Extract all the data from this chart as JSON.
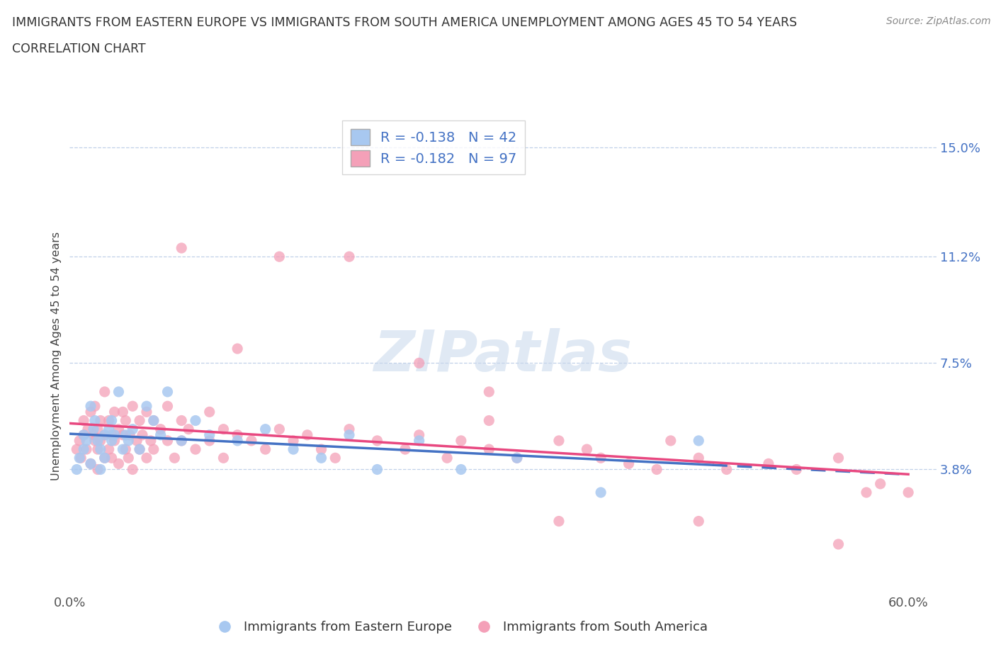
{
  "title_line1": "IMMIGRANTS FROM EASTERN EUROPE VS IMMIGRANTS FROM SOUTH AMERICA UNEMPLOYMENT AMONG AGES 45 TO 54 YEARS",
  "title_line2": "CORRELATION CHART",
  "source": "Source: ZipAtlas.com",
  "ylabel": "Unemployment Among Ages 45 to 54 years",
  "xlim": [
    0.0,
    0.62
  ],
  "ylim": [
    -0.005,
    0.16
  ],
  "yticks": [
    0.038,
    0.075,
    0.112,
    0.15
  ],
  "ytick_labels": [
    "3.8%",
    "7.5%",
    "11.2%",
    "15.0%"
  ],
  "xticks": [
    0.0,
    0.6
  ],
  "xtick_labels": [
    "0.0%",
    "60.0%"
  ],
  "color_blue": "#a8c8f0",
  "color_pink": "#f4a0b8",
  "line_blue": "#4472c4",
  "line_pink": "#e84880",
  "R_blue": -0.138,
  "N_blue": 42,
  "R_pink": -0.182,
  "N_pink": 97,
  "watermark": "ZIPatlas",
  "legend_label_blue": "Immigrants from Eastern Europe",
  "legend_label_pink": "Immigrants from South America",
  "blue_x": [
    0.005,
    0.007,
    0.01,
    0.01,
    0.012,
    0.015,
    0.015,
    0.017,
    0.018,
    0.02,
    0.022,
    0.022,
    0.025,
    0.025,
    0.028,
    0.03,
    0.03,
    0.032,
    0.035,
    0.038,
    0.04,
    0.042,
    0.045,
    0.05,
    0.055,
    0.06,
    0.065,
    0.07,
    0.08,
    0.09,
    0.1,
    0.12,
    0.14,
    0.16,
    0.18,
    0.2,
    0.22,
    0.25,
    0.28,
    0.32,
    0.38,
    0.45
  ],
  "blue_y": [
    0.038,
    0.042,
    0.05,
    0.045,
    0.048,
    0.06,
    0.04,
    0.052,
    0.055,
    0.048,
    0.045,
    0.038,
    0.05,
    0.042,
    0.052,
    0.048,
    0.055,
    0.05,
    0.065,
    0.045,
    0.05,
    0.048,
    0.052,
    0.045,
    0.06,
    0.055,
    0.05,
    0.065,
    0.048,
    0.055,
    0.05,
    0.048,
    0.052,
    0.045,
    0.042,
    0.05,
    0.038,
    0.048,
    0.038,
    0.042,
    0.03,
    0.048
  ],
  "pink_x": [
    0.005,
    0.007,
    0.008,
    0.01,
    0.01,
    0.012,
    0.013,
    0.015,
    0.015,
    0.017,
    0.018,
    0.018,
    0.02,
    0.02,
    0.02,
    0.022,
    0.022,
    0.025,
    0.025,
    0.025,
    0.028,
    0.028,
    0.03,
    0.03,
    0.032,
    0.032,
    0.035,
    0.035,
    0.038,
    0.038,
    0.04,
    0.04,
    0.042,
    0.043,
    0.045,
    0.045,
    0.048,
    0.05,
    0.05,
    0.052,
    0.055,
    0.055,
    0.058,
    0.06,
    0.06,
    0.065,
    0.07,
    0.07,
    0.075,
    0.08,
    0.08,
    0.085,
    0.09,
    0.1,
    0.1,
    0.11,
    0.11,
    0.12,
    0.13,
    0.14,
    0.15,
    0.16,
    0.17,
    0.18,
    0.19,
    0.2,
    0.22,
    0.24,
    0.25,
    0.27,
    0.28,
    0.3,
    0.3,
    0.32,
    0.35,
    0.37,
    0.38,
    0.4,
    0.42,
    0.43,
    0.45,
    0.47,
    0.5,
    0.52,
    0.55,
    0.57,
    0.58,
    0.6,
    0.15,
    0.25,
    0.08,
    0.12,
    0.2,
    0.3,
    0.35,
    0.45,
    0.55
  ],
  "pink_y": [
    0.045,
    0.048,
    0.042,
    0.05,
    0.055,
    0.045,
    0.052,
    0.04,
    0.058,
    0.05,
    0.048,
    0.06,
    0.045,
    0.052,
    0.038,
    0.048,
    0.055,
    0.042,
    0.05,
    0.065,
    0.045,
    0.055,
    0.05,
    0.042,
    0.058,
    0.048,
    0.052,
    0.04,
    0.05,
    0.058,
    0.045,
    0.055,
    0.042,
    0.05,
    0.038,
    0.06,
    0.048,
    0.045,
    0.055,
    0.05,
    0.042,
    0.058,
    0.048,
    0.045,
    0.055,
    0.052,
    0.048,
    0.06,
    0.042,
    0.055,
    0.048,
    0.052,
    0.045,
    0.058,
    0.048,
    0.052,
    0.042,
    0.05,
    0.048,
    0.045,
    0.052,
    0.048,
    0.05,
    0.045,
    0.042,
    0.052,
    0.048,
    0.045,
    0.05,
    0.042,
    0.048,
    0.045,
    0.055,
    0.042,
    0.048,
    0.045,
    0.042,
    0.04,
    0.038,
    0.048,
    0.042,
    0.038,
    0.04,
    0.038,
    0.042,
    0.03,
    0.033,
    0.03,
    0.112,
    0.075,
    0.115,
    0.08,
    0.112,
    0.065,
    0.02,
    0.02,
    0.012
  ]
}
